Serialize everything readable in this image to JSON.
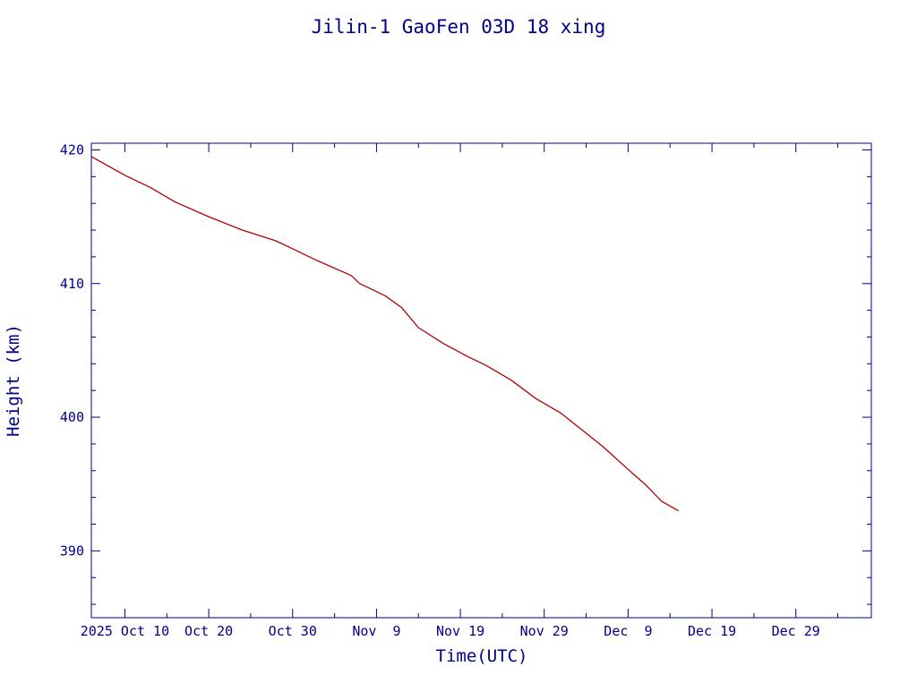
{
  "chart_data": {
    "type": "line",
    "title": "Jilin-1 GaoFen 03D 18 xing",
    "xlabel": "Time(UTC)",
    "ylabel": "Height (km)",
    "xlim": [
      "2025-10-06",
      "2026-01-07"
    ],
    "ylim": [
      385,
      420.5
    ],
    "x_tick_labels": [
      {
        "date": "2025-10-10",
        "label": "2025 Oct 10"
      },
      {
        "date": "2025-10-20",
        "label": "Oct 20"
      },
      {
        "date": "2025-10-30",
        "label": "Oct 30"
      },
      {
        "date": "2025-11-09",
        "label": "Nov  9"
      },
      {
        "date": "2025-11-19",
        "label": "Nov 19"
      },
      {
        "date": "2025-11-29",
        "label": "Nov 29"
      },
      {
        "date": "2025-12-09",
        "label": "Dec  9"
      },
      {
        "date": "2025-12-19",
        "label": "Dec 19"
      },
      {
        "date": "2025-12-29",
        "label": "Dec 29"
      }
    ],
    "y_tick_labels": [
      {
        "value": 390,
        "label": "390"
      },
      {
        "value": 400,
        "label": "400"
      },
      {
        "value": 410,
        "label": "410"
      },
      {
        "value": 420,
        "label": "420"
      }
    ],
    "grid": false,
    "colors": {
      "axes": "#00008b",
      "text": "#00008b",
      "line": "#b00000"
    },
    "series": [
      {
        "x": [
          "2025-10-06",
          "2025-10-10",
          "2025-10-13",
          "2025-10-16",
          "2025-10-20",
          "2025-10-24",
          "2025-10-28",
          "2025-10-30",
          "2025-11-02",
          "2025-11-06",
          "2025-11-07",
          "2025-11-10",
          "2025-11-12",
          "2025-11-14",
          "2025-11-17",
          "2025-11-20",
          "2025-11-22",
          "2025-11-25",
          "2025-11-28",
          "2025-12-01",
          "2025-12-03",
          "2025-12-06",
          "2025-12-09",
          "2025-12-11",
          "2025-12-13",
          "2025-12-15"
        ],
        "y": [
          419.5,
          418.1,
          417.2,
          416.1,
          415.0,
          414.0,
          413.2,
          412.6,
          411.7,
          410.6,
          410.0,
          409.1,
          408.2,
          406.7,
          405.5,
          404.5,
          403.9,
          402.8,
          401.4,
          400.3,
          399.3,
          397.8,
          396.1,
          395.0,
          393.7,
          393.0
        ]
      }
    ]
  }
}
